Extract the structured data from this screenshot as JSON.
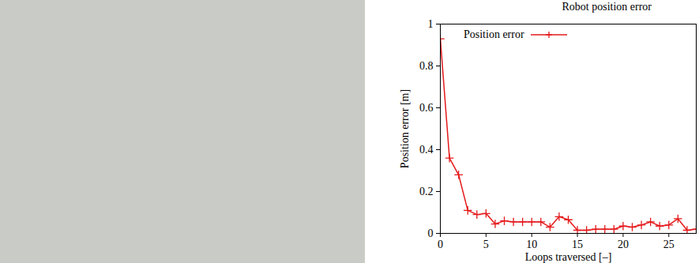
{
  "chart_data": {
    "type": "line",
    "title": "Robot position error",
    "x_label": "Loops traversed [–]",
    "y_label": "Position error [m]",
    "x": [
      0,
      1,
      2,
      3,
      4,
      5,
      6,
      7,
      8,
      9,
      10,
      11,
      12,
      13,
      14,
      15,
      16,
      17,
      18,
      19,
      20,
      21,
      22,
      23,
      24,
      25,
      26,
      27,
      28
    ],
    "series": [
      {
        "name": "Position error",
        "color": "#e41a1c",
        "marker": "plus",
        "values": [
          0.93,
          0.36,
          0.28,
          0.11,
          0.09,
          0.095,
          0.045,
          0.06,
          0.055,
          0.055,
          0.055,
          0.055,
          0.03,
          0.08,
          0.065,
          0.015,
          0.015,
          0.02,
          0.02,
          0.02,
          0.035,
          0.03,
          0.04,
          0.055,
          0.035,
          0.04,
          0.07,
          0.015,
          0.02
        ]
      }
    ],
    "xlim": [
      0,
      28
    ],
    "xticks": [
      0,
      5,
      10,
      15,
      20,
      25
    ],
    "ylim": [
      0,
      1
    ],
    "yticks": [
      0,
      0.2,
      0.4,
      0.6,
      0.8,
      1
    ],
    "legend": "top-left",
    "grid": false
  }
}
